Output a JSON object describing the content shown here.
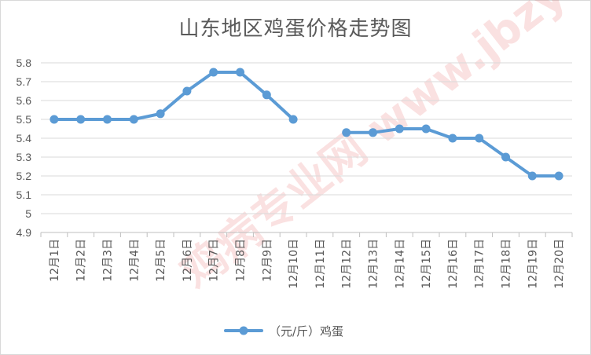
{
  "chart_data": {
    "type": "line",
    "title": "山东地区鸡蛋价格走势图",
    "xlabel": "",
    "ylabel": "",
    "categories": [
      "12月1日",
      "12月2日",
      "12月3日",
      "12月4日",
      "12月5日",
      "12月6日",
      "12月7日",
      "12月8日",
      "12月9日",
      "12月10日",
      "12月11日",
      "12月12日",
      "12月13日",
      "12月14日",
      "12月15日",
      "12月16日",
      "12月17日",
      "12月18日",
      "12月19日",
      "12月20日"
    ],
    "series": [
      {
        "name": "（元/斤）鸡蛋",
        "values": [
          5.5,
          5.5,
          5.5,
          5.5,
          5.53,
          5.65,
          5.75,
          5.75,
          5.63,
          5.5,
          null,
          5.43,
          5.43,
          5.45,
          5.45,
          5.4,
          5.4,
          5.3,
          5.2,
          5.2
        ],
        "color": "#5b9bd5"
      }
    ],
    "yticks": [
      "4.9",
      "5",
      "5.1",
      "5.2",
      "5.3",
      "5.4",
      "5.5",
      "5.6",
      "5.7",
      "5.8"
    ],
    "ylim": [
      4.9,
      5.8
    ],
    "grid": true,
    "legend": "bottom",
    "watermark": "鸡病专业网 www.jbzyw.com"
  }
}
